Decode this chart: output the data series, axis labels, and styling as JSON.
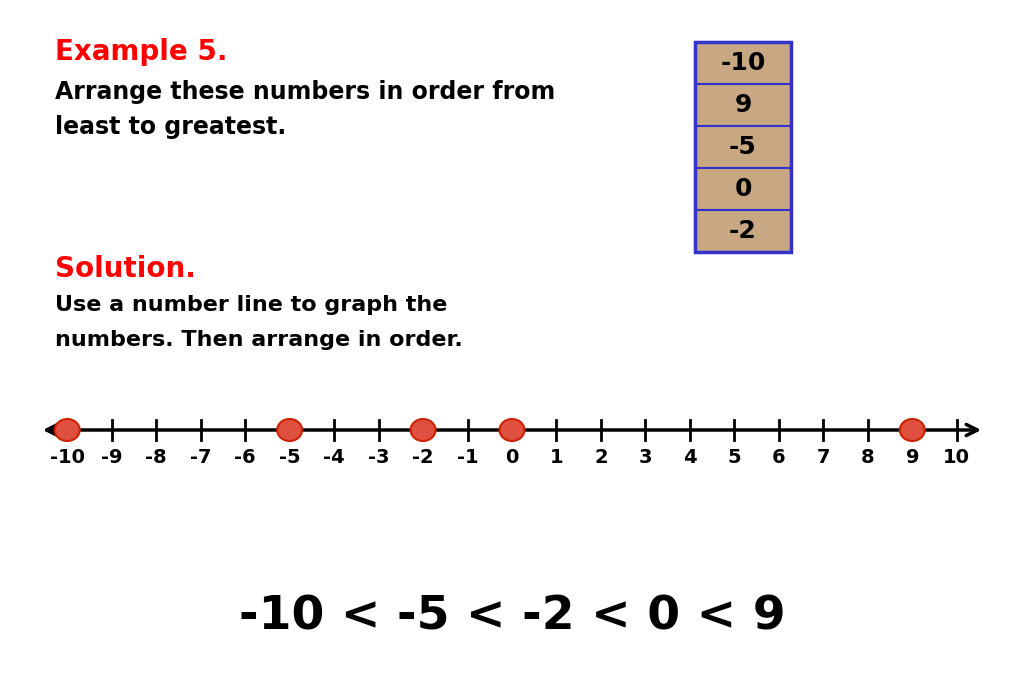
{
  "title_text": "Example 5.",
  "title_color": "#ff0000",
  "problem_text_line1": "Arrange these numbers in order from",
  "problem_text_line2": "least to greatest.",
  "solution_label": "Solution.",
  "solution_color": "#ff0000",
  "solution_text_line1": "Use a number line to graph the",
  "solution_text_line2": "numbers. Then arrange in order.",
  "table_numbers": [
    "-10",
    "9",
    "-5",
    "0",
    "-2"
  ],
  "table_bg_color": "#c8a882",
  "table_border_color": "#3333cc",
  "number_line_min": -10,
  "number_line_max": 10,
  "highlighted_points": [
    -10,
    -5,
    -2,
    0,
    9
  ],
  "dot_color": "#e05040",
  "dot_edge_color": "#cc2200",
  "result_text": "-10 < -5 < -2 < 0 < 9",
  "result_color": "#000000",
  "background_color": "#ffffff",
  "text_color": "#000000",
  "font_size_title": 20,
  "font_size_problem": 17,
  "font_size_solution_label": 20,
  "font_size_solution_text": 16,
  "font_size_result": 34,
  "font_size_tick": 14,
  "font_size_table": 18
}
